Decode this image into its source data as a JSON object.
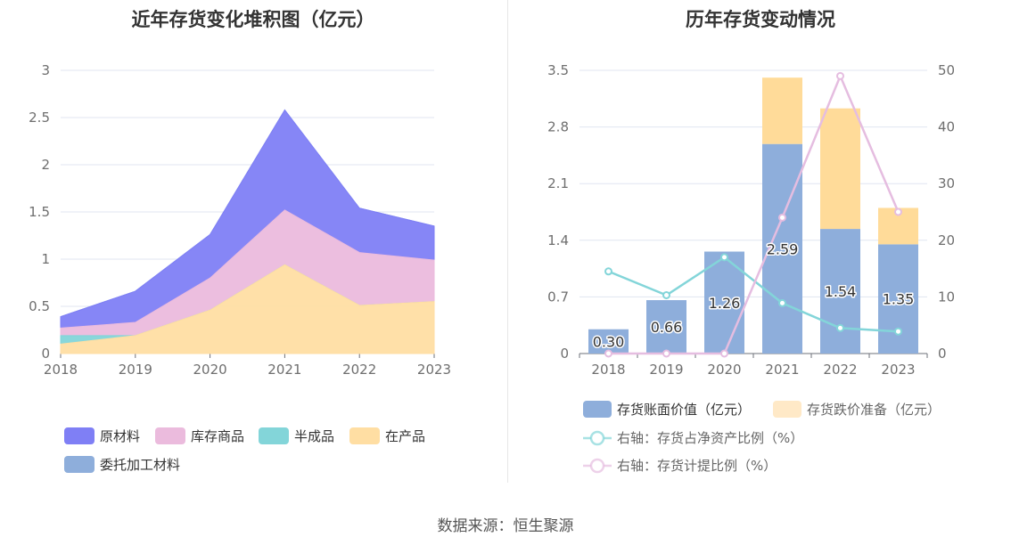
{
  "charts": {
    "left": {
      "title": "近年存货变化堆积图（亿元）"
    },
    "right": {
      "title": "历年存货变动情况"
    }
  },
  "source_text": "数据来源：恒生聚源",
  "colors": {
    "raw_material": "#7f7ff5",
    "goods": "#ebbbdd",
    "semi": "#83d5d9",
    "wip": "#ffdea3",
    "consigned": "#8eaedb",
    "bar_book": "#8eaedb",
    "bar_provision": "#ffdb99",
    "legend_provision": "#ffe9c7",
    "line_ratio": "#83d5d9",
    "line_provision": "#e5bde0",
    "grid": "#e0e6f1"
  },
  "chart_data": [
    {
      "type": "area",
      "stacked": true,
      "title": "近年存货变化堆积图（亿元）",
      "x": [
        "2018",
        "2019",
        "2020",
        "2021",
        "2022",
        "2023"
      ],
      "ylim": [
        0,
        3
      ],
      "yticks": [
        "0",
        "0.5",
        "1",
        "1.5",
        "2",
        "2.5",
        "3"
      ],
      "grid": true,
      "legend_position": "bottom",
      "series": [
        {
          "name": "在产品",
          "color": "#ffdea3",
          "values": [
            0.1,
            0.19,
            0.46,
            0.94,
            0.51,
            0.55
          ]
        },
        {
          "name": "半成品",
          "color": "#83d5d9",
          "values": [
            0.09,
            0.0,
            0.0,
            0.0,
            0.0,
            0.0
          ]
        },
        {
          "name": "库存商品",
          "color": "#ebbbdd",
          "values": [
            0.08,
            0.14,
            0.34,
            0.58,
            0.56,
            0.44
          ]
        },
        {
          "name": "原材料",
          "color": "#7f7ff5",
          "values": [
            0.12,
            0.33,
            0.46,
            1.06,
            0.47,
            0.36
          ]
        },
        {
          "name": "委托加工材料",
          "color": "#8eaedb",
          "values": [
            0,
            0,
            0,
            0,
            0,
            0
          ]
        }
      ],
      "legend_order": [
        "原材料",
        "库存商品",
        "半成品",
        "在产品",
        "委托加工材料"
      ]
    },
    {
      "type": "bar",
      "stacked": true,
      "title": "历年存货变动情况",
      "categories": [
        "2018",
        "2019",
        "2020",
        "2021",
        "2022",
        "2023"
      ],
      "ylim": [
        0,
        3.5
      ],
      "yticks": [
        "0",
        "0.7",
        "1.4",
        "2.1",
        "2.8",
        "3.5"
      ],
      "y2lim": [
        0,
        50
      ],
      "y2ticks": [
        "0",
        "10",
        "20",
        "30",
        "40",
        "50"
      ],
      "grid": true,
      "legend_position": "bottom",
      "series": [
        {
          "name": "存货账面价值（亿元）",
          "axis": "left",
          "type": "bar",
          "color": "#8eaedb",
          "values": [
            0.3,
            0.66,
            1.26,
            2.59,
            1.54,
            1.35
          ],
          "labels": [
            "0.30",
            "0.66",
            "1.26",
            "2.59",
            "1.54",
            "1.35"
          ]
        },
        {
          "name": "存货跌价准备（亿元）",
          "axis": "left",
          "type": "bar",
          "color": "#ffdb99",
          "values": [
            0,
            0,
            0,
            0.82,
            1.49,
            0.45
          ]
        },
        {
          "name": "右轴：存货占净资产比例（%）",
          "axis": "right",
          "type": "line",
          "color": "#83d5d9",
          "values": [
            14.5,
            10.3,
            17.0,
            8.9,
            4.5,
            3.9
          ]
        },
        {
          "name": "右轴：存货计提比例（%）",
          "axis": "right",
          "type": "line",
          "color": "#e5bde0",
          "values": [
            0,
            0,
            0,
            24,
            49,
            25
          ]
        }
      ]
    }
  ]
}
